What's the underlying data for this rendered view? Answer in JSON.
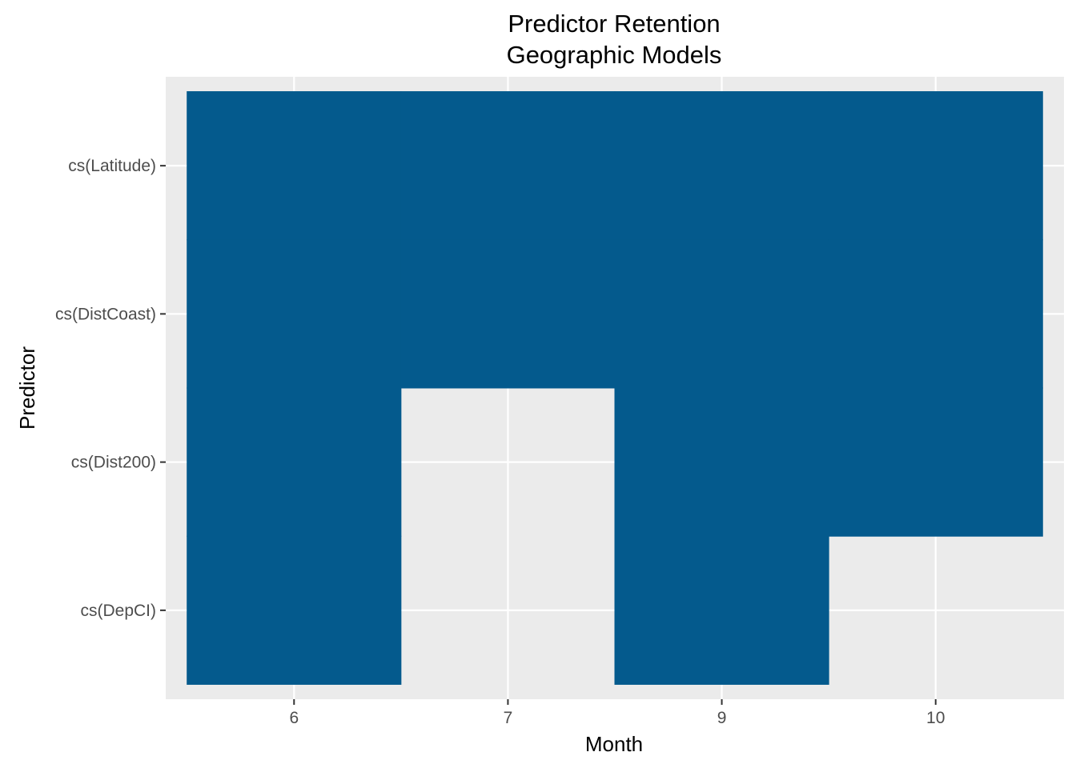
{
  "chart_data": {
    "type": "heatmap",
    "title": "Predictor Retention",
    "subtitle": "Geographic Models",
    "xlabel": "Month",
    "ylabel": "Predictor",
    "x_categories": [
      "6",
      "7",
      "9",
      "10"
    ],
    "y_categories": [
      "cs(Latitude)",
      "cs(DistCoast)",
      "cs(Dist200)",
      "cs(DepCI)"
    ],
    "cells": [
      {
        "x": "6",
        "y": "cs(Latitude)",
        "retained": true
      },
      {
        "x": "6",
        "y": "cs(DistCoast)",
        "retained": true
      },
      {
        "x": "6",
        "y": "cs(Dist200)",
        "retained": true
      },
      {
        "x": "6",
        "y": "cs(DepCI)",
        "retained": true
      },
      {
        "x": "7",
        "y": "cs(Latitude)",
        "retained": true
      },
      {
        "x": "7",
        "y": "cs(DistCoast)",
        "retained": true
      },
      {
        "x": "9",
        "y": "cs(Latitude)",
        "retained": true
      },
      {
        "x": "9",
        "y": "cs(DistCoast)",
        "retained": true
      },
      {
        "x": "9",
        "y": "cs(Dist200)",
        "retained": true
      },
      {
        "x": "9",
        "y": "cs(DepCI)",
        "retained": true
      },
      {
        "x": "10",
        "y": "cs(Latitude)",
        "retained": true
      },
      {
        "x": "10",
        "y": "cs(DistCoast)",
        "retained": true
      },
      {
        "x": "10",
        "y": "cs(Dist200)",
        "retained": true
      }
    ],
    "grid": true,
    "legend": "none",
    "colors": {
      "fill": "#045A8D",
      "panel": "#EBEBEB",
      "grid": "#FFFFFF",
      "tick_text": "#4D4D4D",
      "tick_mark": "#333333"
    }
  }
}
